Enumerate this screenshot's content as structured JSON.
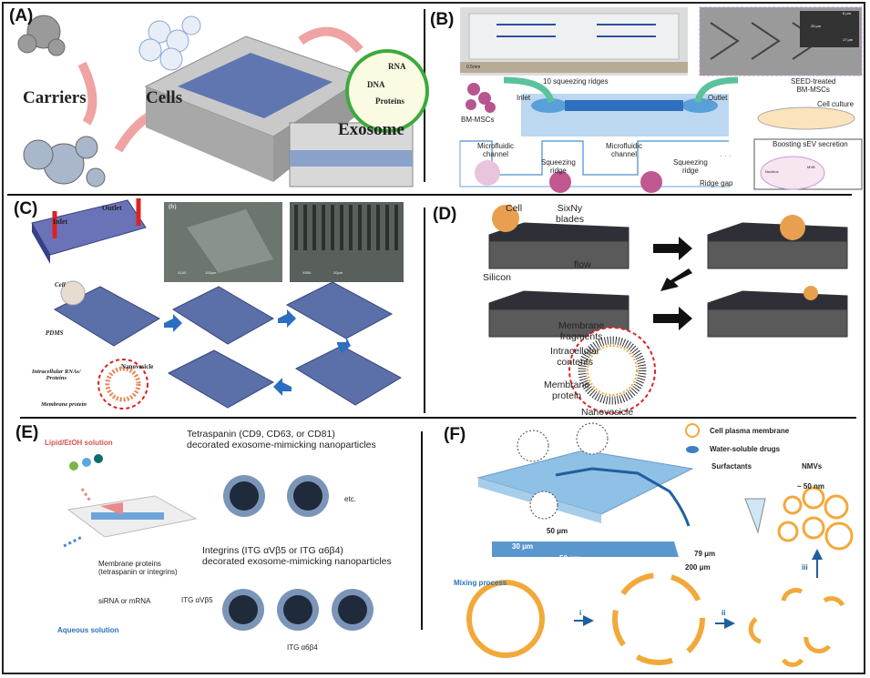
{
  "panels": {
    "a": {
      "label": "(A)",
      "carriers": "Carriers",
      "cells": "Cells",
      "exosome": "Exosome",
      "rna": "RNA",
      "dna": "DNA",
      "proteins": "Proteins"
    },
    "b": {
      "label": "(B)",
      "ruler": "0.5mm",
      "sem_dims": [
        "8 μm",
        "25 μm",
        "17 μm"
      ],
      "ridges": "10 squeezing ridges",
      "inlet": "Inlet",
      "outlet": "Outlet",
      "bm_mscs": "BM-MSCs",
      "seed_treated": "SEED-treated\nBM-MSCs",
      "cell_culture": "Cell culture",
      "channel_1": "Microfluidic\nchannel",
      "ridge_1": "Squeezing\nridge",
      "channel_2": "Microfluidic\nchannel",
      "ridge_2": "Squeezing\nridge",
      "ellipsis": "· · ·",
      "ridge_gap": "Ridge gap",
      "boosting": "Boosting sEV secretion",
      "nucleus": "Nucleus",
      "mvb": "MVB"
    },
    "c": {
      "label": "(C)",
      "inlet": "Inlet",
      "outlet": "Outlet",
      "sem_label": "(b)",
      "sem1_mag": "X140",
      "sem1_scale": "100μm",
      "sem2_mag": "X550",
      "sem2_scale": "20μm",
      "cell": "Cell",
      "pdms": "PDMS",
      "nanovesicle": "Nanovesicle",
      "intracellular": "Intracellular RNAs/\nProteins",
      "membrane_protein": "Membrane protein"
    },
    "d": {
      "label": "(D)",
      "cell": "Cell",
      "blades": "SixNy\nblades",
      "flow": "flow",
      "silicon": "Silicon",
      "fragments": "Membrane\nfragments",
      "intracellular": "Intracellular\ncontents",
      "membrane_protein": "Membrane\nprotein",
      "nanovesicle": "Nanovesicle"
    },
    "e": {
      "label": "(E)",
      "lipid": "Lipid/EtOH solution",
      "tetraspanin": "Tetraspanin (CD9, CD63, or CD81)\ndecorated exosome-mimicking nanoparticles",
      "etc": "etc.",
      "integrins": "Integrins (ITG αVβ5 or ITG α6β4)\ndecorated exosome-mimicking nanoparticles",
      "membrane_proteins": "Membrane proteins\n(tetraspanin or integrins)",
      "sirna": "siRNA or mRNA",
      "aqueous": "Aqueous solution",
      "itg_avb5": "ITG αVβ5",
      "itg_a6b4": "ITG α6β4"
    },
    "f": {
      "label": "(F)",
      "legend_membrane": "Cell plasma membrane",
      "legend_drugs": "Water-soluble drugs",
      "legend_surfactants": "Surfactants",
      "legend_nmvs": "NMVs",
      "size": "~ 50 nm",
      "dim_50a": "50 μm",
      "dim_30": "30 μm",
      "dim_50b": "50 μm",
      "dim_79": "79 μm",
      "dim_200": "200 μm",
      "mixing": "Mixing process",
      "step_i": "i",
      "step_ii": "ii",
      "step_iii": "iii"
    }
  },
  "colors": {
    "chip_blue": "#7fb3dc",
    "dark_blue": "#1f5f9e",
    "pdms_blue": "#5b6fa8",
    "silicon_gray": "#5a5a5a",
    "red_dash": "#d22",
    "lipid_red": "#d9534f",
    "aqueous_blue": "#2a72c0",
    "membrane_orange": "#f2a93b"
  }
}
